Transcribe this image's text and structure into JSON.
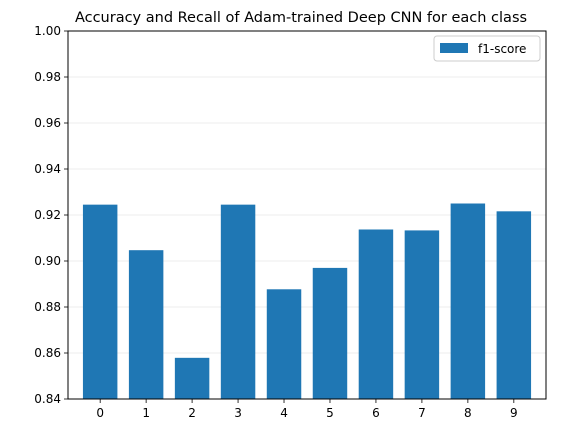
{
  "chart_data": {
    "type": "bar",
    "title": "Accuracy and Recall of Adam-trained Deep CNN for each class",
    "xlabel": "",
    "ylabel": "",
    "categories": [
      "0",
      "1",
      "2",
      "3",
      "4",
      "5",
      "6",
      "7",
      "8",
      "9"
    ],
    "series": [
      {
        "name": "f1-score",
        "values": [
          0.9245,
          0.9047,
          0.8579,
          0.9245,
          0.8877,
          0.897,
          0.9137,
          0.9133,
          0.925,
          0.9216
        ],
        "color": "#1f77b4"
      }
    ],
    "ylim": [
      0.84,
      1.0
    ],
    "yticks": [
      "0.84",
      "0.86",
      "0.88",
      "0.90",
      "0.92",
      "0.94",
      "0.96",
      "0.98",
      "1.00"
    ],
    "grid": "horizontal",
    "legend_position": "top-right"
  }
}
